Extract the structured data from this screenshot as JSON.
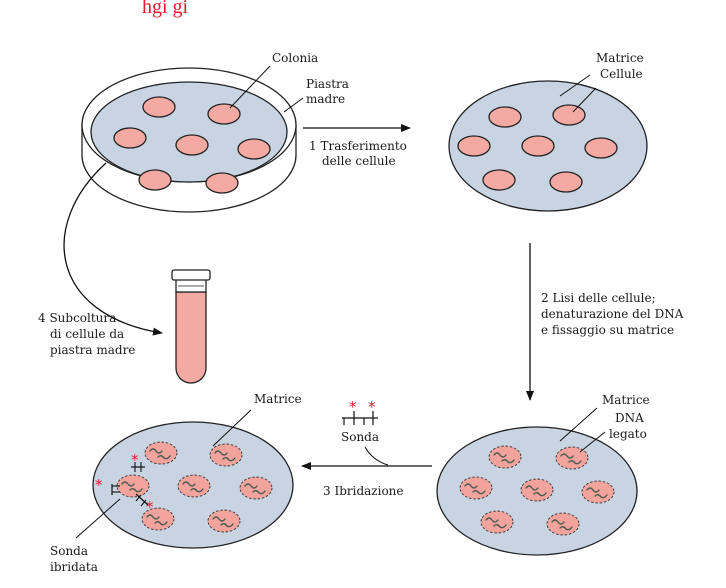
{
  "header_fragment": "hgi   gi",
  "labels": {
    "colonia": "Colonia",
    "piastra_line1": "Piastra",
    "piastra_line2": "madre",
    "matrice_top": "Matrice",
    "cellule": "Cellule",
    "step1_line1": "1  Trasferimento",
    "step1_line2": "delle cellule",
    "step2_line1": "2  Lisi delle cellule;",
    "step2_line2": "denaturazione del DNA",
    "step2_line3": "e fissaggio su matrice",
    "step4_line1": "4  Subcoltura",
    "step4_line2": "di cellule da",
    "step4_line3": "piastra madre",
    "matrice_bottom_right": "Matrice",
    "dna_line1": "DNA",
    "dna_line2": "legato",
    "sonda": "Sonda",
    "step3": "3  Ibridazione",
    "matrice_bottom_left": "Matrice",
    "sonda_ibridata_line1": "Sonda",
    "sonda_ibridata_line2": "ibridata"
  },
  "colors": {
    "colony": "#f4a9a2",
    "matrix": "#c9d4e3",
    "probe_star": "#e8182a"
  }
}
